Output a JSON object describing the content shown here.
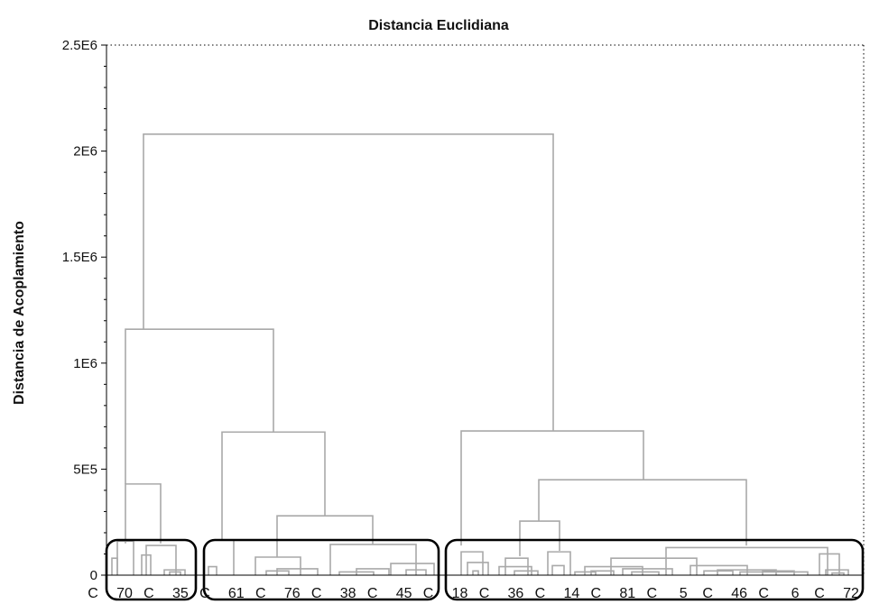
{
  "chart_data": {
    "type": "dendrogram",
    "title": "Distancia Euclidiana",
    "ylabel": "Distancia de Acoplamiento",
    "xlabel": "",
    "ylim": [
      0,
      2500000
    ],
    "y_ticks": [
      0,
      500000,
      1000000,
      1500000,
      2000000,
      2500000
    ],
    "y_tick_labels": [
      "0",
      "5E5",
      "1E6",
      "1.5E6",
      "2E6",
      "2.5E6"
    ],
    "x_tick_labels": [
      "C",
      "70",
      "C",
      "35",
      "C",
      "61",
      "C",
      "76",
      "C",
      "38",
      "C",
      "45",
      "C",
      "18",
      "C",
      "36",
      "C",
      "14",
      "C",
      "81",
      "C",
      "5",
      "C",
      "46",
      "C",
      "6",
      "C",
      "72"
    ],
    "grid": false,
    "colors": {
      "links": "#a9a9a9",
      "cluster_boxes": "#000000",
      "axes": "#000000"
    },
    "merges": [
      {
        "height": 2080000
      },
      {
        "height": 1160000
      },
      {
        "height": 680000
      },
      {
        "height": 675000
      },
      {
        "height": 450000
      },
      {
        "height": 430000
      },
      {
        "height": 280000
      },
      {
        "height": 255000
      }
    ],
    "clusters": [
      {
        "label_range": [
          "C",
          "35"
        ]
      },
      {
        "label_range": [
          "C",
          "45"
        ]
      },
      {
        "label_range": [
          "C",
          "72"
        ]
      }
    ]
  }
}
